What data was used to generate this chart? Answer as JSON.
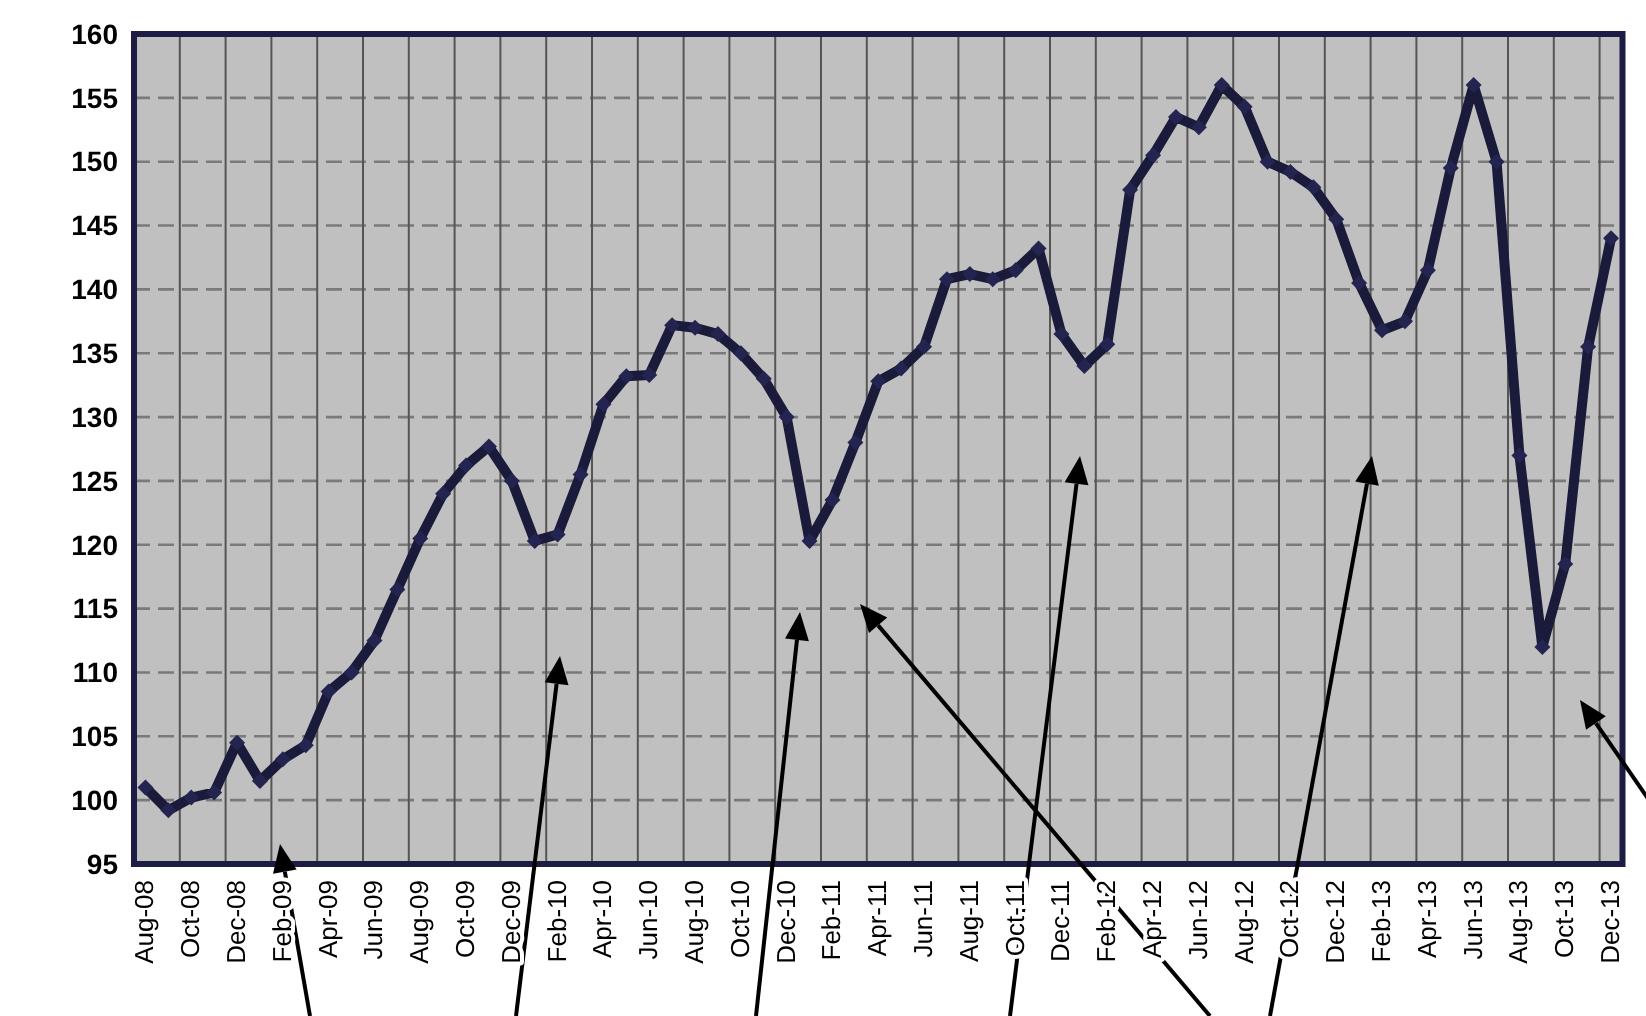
{
  "chart_data": {
    "type": "line",
    "categories": [
      "Aug-08",
      null,
      "Oct-08",
      null,
      "Dec-08",
      null,
      "Feb-09",
      null,
      "Apr-09",
      null,
      "Jun-09",
      null,
      "Aug-09",
      null,
      "Oct-09",
      null,
      "Dec-09",
      null,
      "Feb-10",
      null,
      "Apr-10",
      null,
      "Jun-10",
      null,
      "Aug-10",
      null,
      "Oct-10",
      null,
      "Dec-10",
      null,
      "Feb-11",
      null,
      "Apr-11",
      null,
      "Jun-11",
      null,
      "Aug-11",
      null,
      "Oct-11",
      null,
      "Dec-11",
      null,
      "Feb-12",
      null,
      "Apr-12",
      null,
      "Jun-12",
      null,
      "Aug-12",
      null,
      "Oct-12",
      null,
      "Dec-12",
      null,
      "Feb-13",
      null,
      "Apr-13",
      null,
      "Jun-13",
      null,
      "Aug-13",
      null,
      "Oct-13",
      null,
      "Dec-13"
    ],
    "series": [
      {
        "color": "#1a1a3a",
        "values": [
          101,
          99.2,
          100.2,
          100.6,
          104.5,
          101.5,
          103.2,
          104.3,
          108.5,
          110,
          112.5,
          116.5,
          120.5,
          124,
          126.2,
          127.7,
          125,
          120.3,
          120.8,
          125.5,
          131,
          133.2,
          133.3,
          137.2,
          137,
          136.5,
          135,
          133,
          130,
          120.3,
          123.5,
          128,
          132.8,
          133.8,
          135.5,
          140.8,
          141.2,
          140.8,
          141.5,
          143.2,
          136.5,
          134,
          135.7,
          147.8,
          150.5,
          153.5,
          152.7,
          156,
          154.3,
          150,
          149.2,
          148,
          145.5,
          140.5,
          136.8,
          137.5,
          141.5,
          149.5,
          156,
          150,
          127,
          112,
          118.5,
          135.5,
          144
        ]
      }
    ],
    "ylim": [
      95,
      160
    ],
    "yticks": [
      95,
      100,
      105,
      110,
      115,
      120,
      125,
      130,
      135,
      140,
      145,
      150,
      155,
      160
    ],
    "grid": true,
    "marker": "diamond",
    "line_style": "solid"
  }
}
